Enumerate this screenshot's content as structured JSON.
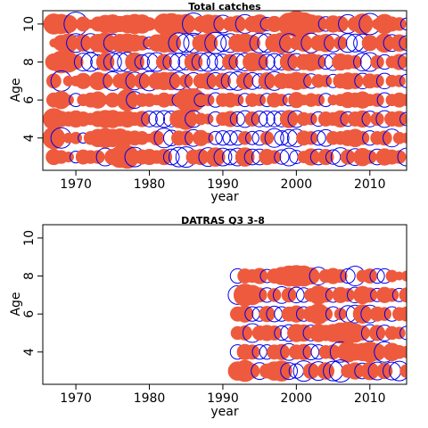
{
  "colors": {
    "positive": "#EE5A3D",
    "negative": "#0000EE"
  },
  "chart_data": [
    {
      "type": "scatter",
      "encoding": "bubble residuals (filled = positive, open circle = negative)",
      "title": "Total catches",
      "xlabel": "year",
      "ylabel": "Age",
      "xlim": [
        1965.5,
        2015
      ],
      "ylim": [
        2.3,
        10.7
      ],
      "xticks": [
        1970,
        1980,
        1990,
        2000,
        2010
      ],
      "yticks": [
        4,
        6,
        8,
        10
      ],
      "years": [
        1967,
        1968,
        1969,
        1970,
        1971,
        1972,
        1973,
        1974,
        1975,
        1976,
        1977,
        1978,
        1979,
        1980,
        1981,
        1982,
        1983,
        1984,
        1985,
        1986,
        1987,
        1988,
        1989,
        1990,
        1991,
        1992,
        1993,
        1994,
        1995,
        1996,
        1997,
        1998,
        1999,
        2000,
        2001,
        2002,
        2003,
        2004,
        2005,
        2006,
        2007,
        2008,
        2009,
        2010,
        2011,
        2012,
        2013,
        2014,
        2015
      ],
      "series": [
        {
          "age": 10,
          "residuals": [
            1.2,
            1.1,
            0.9,
            -1.6,
            0.6,
            0.2,
            0.6,
            0.9,
            1.0,
            0.7,
            0.9,
            1.1,
            1.0,
            0.5,
            0.3,
            1.2,
            1.3,
            1.0,
            1.1,
            -1.4,
            0.7,
            1.0,
            0.9,
            -0.9,
            0.6,
            0.8,
            -1.0,
            0.7,
            1.0,
            -0.5,
            0.7,
            0.3,
            1.4,
            1.9,
            1.5,
            1.0,
            0.8,
            -0.6,
            0.8,
            0.7,
            -1.0,
            0.6,
            1.2,
            -1.3,
            0.3,
            1.1,
            0.6,
            0.5,
            -0.4
          ]
        },
        {
          "age": 9,
          "residuals": [
            0.2,
            0.7,
            1.0,
            -1.0,
            0.8,
            -1.0,
            0.9,
            1.2,
            -0.9,
            0.9,
            1.0,
            0.8,
            0.6,
            -0.4,
            0.8,
            1.0,
            1.0,
            -1.2,
            -1.0,
            -1.1,
            0.8,
            1.0,
            -1.3,
            -0.8,
            -1.0,
            0.9,
            1.0,
            0.7,
            -1.1,
            -1.0,
            0.9,
            1.2,
            -1.0,
            0.5,
            0.8,
            -1.1,
            0.7,
            0.9,
            -0.9,
            0.5,
            -1.0,
            -0.9,
            -0.9,
            0.7,
            0.2,
            1.0,
            -0.8,
            0.8,
            -0.6
          ]
        },
        {
          "age": 8,
          "residuals": [
            0.8,
            1.4,
            1.2,
            0.6,
            -0.9,
            -1.0,
            -0.6,
            0.9,
            -0.9,
            -1.0,
            -1.1,
            1.0,
            -0.6,
            -0.9,
            -1.0,
            0.7,
            -0.8,
            -0.9,
            -0.7,
            0.9,
            -0.9,
            -1.0,
            -0.8,
            -0.7,
            0.7,
            -0.8,
            -0.9,
            1.0,
            0.8,
            -0.7,
            -0.8,
            -0.7,
            0.9,
            -0.8,
            0.7,
            0.9,
            0.6,
            -0.6,
            -0.8,
            0.8,
            0.6,
            0.5,
            -0.9,
            -1.0,
            0.5,
            -0.6,
            0.4,
            0.7,
            -0.8
          ]
        },
        {
          "age": 7,
          "residuals": [
            0.6,
            -1.2,
            0.3,
            0.3,
            0.7,
            0.2,
            0.9,
            0.6,
            -1.0,
            0.6,
            0.9,
            -0.9,
            0.7,
            -1.1,
            0.8,
            0.9,
            0.9,
            -0.9,
            0.5,
            -0.8,
            0.6,
            0.8,
            -0.8,
            0.7,
            -0.9,
            -1.0,
            0.8,
            -0.8,
            -0.6,
            0.8,
            -1.0,
            0.7,
            0.6,
            0.9,
            0.7,
            -0.6,
            0.5,
            0.4,
            -0.5,
            0.6,
            0.8,
            0.7,
            -0.7,
            0.6,
            0.5,
            -0.7,
            0.4,
            0.4,
            -0.5
          ]
        },
        {
          "age": 6,
          "residuals": [
            0.6,
            0.9,
            0.3,
            -0.5,
            0.4,
            0.6,
            0.8,
            0.2,
            0.6,
            0.2,
            1.3,
            -0.8,
            0.5,
            0.5,
            0.3,
            0.6,
            0.4,
            -0.5,
            1.4,
            1.5,
            -0.5,
            0.4,
            -0.6,
            0.5,
            0.6,
            0.4,
            -0.5,
            0.5,
            0.4,
            -0.5,
            0.6,
            0.4,
            -0.4,
            0.7,
            0.3,
            0.5,
            0.4,
            -0.5,
            0.3,
            0.4,
            0.7,
            0.6,
            0.8,
            0.4,
            0.5,
            -0.6,
            0.4,
            0.6,
            0.4
          ]
        },
        {
          "age": 5,
          "residuals": [
            1.3,
            0.7,
            0.6,
            0.8,
            0.6,
            0.4,
            0.7,
            0.9,
            0.9,
            0.6,
            0.8,
            0.5,
            0.7,
            -0.7,
            -0.7,
            -0.8,
            -0.7,
            0.9,
            1.3,
            -0.8,
            0.4,
            0.3,
            -0.6,
            0.5,
            0.7,
            -0.6,
            -0.8,
            0.6,
            -0.7,
            -0.7,
            -0.7,
            -0.7,
            0.9,
            -0.8,
            0.5,
            0.4,
            -0.6,
            0.6,
            0.5,
            0.8,
            -0.6,
            0.6,
            0.8,
            -0.7,
            0.5,
            -0.8,
            0.6,
            0.7,
            -0.5
          ]
        },
        {
          "age": 4,
          "residuals": [
            1.4,
            -1.2,
            0.3,
            0.4,
            -0.3,
            0.5,
            0.9,
            1.1,
            0.9,
            1.0,
            0.6,
            0.6,
            0.5,
            0.2,
            0.6,
            -1.1,
            -0.7,
            0.6,
            0.6,
            -0.8,
            0.7,
            0.3,
            -0.5,
            -0.6,
            -0.6,
            -0.6,
            0.5,
            -0.5,
            -0.6,
            0.5,
            -1.0,
            -0.6,
            -0.8,
            -0.9,
            0.6,
            0.5,
            -0.6,
            -0.8,
            0.5,
            0.5,
            0.7,
            0.9,
            0.5,
            -0.6,
            0.5,
            0.6,
            -0.9,
            0.4,
            0.3
          ]
        },
        {
          "age": 3,
          "residuals": [
            0.7,
            0.5,
            0.3,
            -0.4,
            0.6,
            0.5,
            0.5,
            -0.9,
            0.7,
            1.3,
            1.5,
            -1.1,
            0.6,
            0.7,
            0.5,
            0.7,
            -0.7,
            -1.1,
            -1.2,
            0.6,
            0.7,
            -1.0,
            1.0,
            -0.9,
            -0.7,
            -0.9,
            1.0,
            -0.7,
            -0.7,
            0.7,
            0.5,
            -0.6,
            -0.9,
            -0.5,
            0.4,
            0.8,
            -0.7,
            0.7,
            -0.6,
            -1.0,
            0.6,
            -0.8,
            0.9,
            0.5,
            -0.7,
            0.8,
            0.6,
            0.5,
            -0.9
          ]
        }
      ]
    },
    {
      "type": "scatter",
      "encoding": "bubble residuals (filled = positive, open circle = negative)",
      "title": "DATRAS Q3 3-8",
      "xlabel": "year",
      "ylabel": "Age",
      "xlim": [
        1965.5,
        2015
      ],
      "ylim": [
        2.3,
        10.7
      ],
      "xticks": [
        1970,
        1980,
        1990,
        2000,
        2010
      ],
      "yticks": [
        4,
        6,
        8,
        10
      ],
      "years": [
        1992,
        1993,
        1994,
        1995,
        1996,
        1997,
        1998,
        1999,
        2000,
        2001,
        2002,
        2003,
        2004,
        2005,
        2006,
        2007,
        2008,
        2009,
        2010,
        2011,
        2012,
        2013,
        2014,
        2015
      ],
      "series": [
        {
          "age": 8,
          "residuals": [
            -0.6,
            0.6,
            0.5,
            0.7,
            -0.5,
            0.6,
            0.9,
            1.2,
            1.3,
            1.2,
            0.8,
            -0.9,
            0.5,
            0.7,
            0.5,
            -0.6,
            -1.1,
            0.4,
            0.6,
            -0.6,
            -0.6,
            0.4,
            0.2,
            0.3
          ]
        },
        {
          "age": 7,
          "residuals": [
            -1.0,
            1.4,
            1.1,
            0.6,
            -0.6,
            0.5,
            -0.8,
            0.6,
            -0.7,
            -0.6,
            0.5,
            1.0,
            0.6,
            -0.6,
            0.7,
            0.5,
            -0.7,
            0.9,
            0.6,
            -0.5,
            0.7,
            0.5,
            -0.5,
            0.6
          ]
        },
        {
          "age": 6,
          "residuals": [
            0.6,
            0.8,
            -0.6,
            -0.6,
            0.7,
            -0.7,
            -0.6,
            0.6,
            0.8,
            -0.6,
            0.7,
            1.2,
            0.5,
            -0.6,
            0.4,
            -0.8,
            -0.9,
            1.0,
            -0.9,
            0.6,
            0.5,
            -0.6,
            0.5,
            0.6
          ]
        },
        {
          "age": 5,
          "residuals": [
            0.5,
            0.6,
            -1.0,
            0.6,
            0.7,
            0.6,
            -0.6,
            -0.8,
            0.9,
            0.8,
            -0.7,
            0.9,
            0.7,
            0.9,
            1.2,
            1.4,
            1.0,
            0.6,
            -0.8,
            0.7,
            -0.7,
            0.5,
            0.4,
            -0.5
          ]
        },
        {
          "age": 4,
          "residuals": [
            -0.6,
            0.7,
            0.6,
            -0.6,
            -0.6,
            0.6,
            0.7,
            -0.8,
            0.6,
            0.7,
            -0.7,
            -0.6,
            0.5,
            0.6,
            -1.2,
            1.2,
            0.8,
            0.9,
            1.2,
            0.8,
            -1.2,
            0.9,
            0.5,
            0.4
          ]
        },
        {
          "age": 3,
          "residuals": [
            1.0,
            1.3,
            0.6,
            -0.8,
            0.6,
            1.0,
            1.2,
            -0.8,
            -0.6,
            -1.2,
            0.7,
            -1.0,
            0.8,
            -1.1,
            -1.4,
            0.5,
            0.8,
            -0.7,
            0.9,
            -0.9,
            0.7,
            -0.9,
            -1.1,
            0.5
          ]
        }
      ]
    }
  ]
}
